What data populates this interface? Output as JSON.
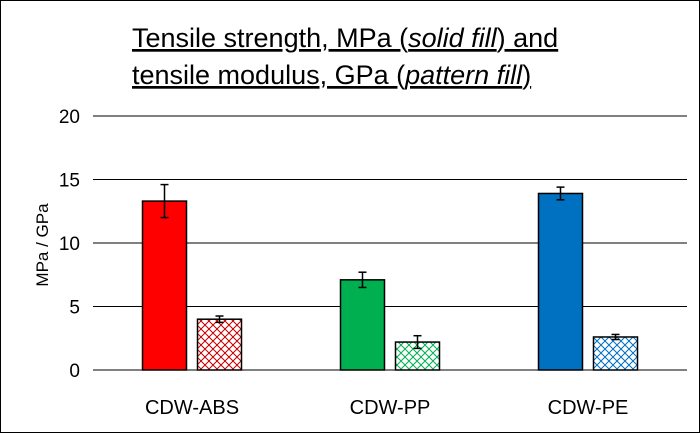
{
  "chart_data": {
    "type": "bar",
    "title": {
      "line1": {
        "a": "Tensile strength, MPa (",
        "b": "solid fill",
        "c": ") and"
      },
      "line2": {
        "a": "tensile modulus, GPa (",
        "b": "pattern fill",
        "c": ")"
      }
    },
    "ylabel": "MPa / GPa",
    "xlabel": "",
    "ylim": [
      0,
      20
    ],
    "yticks": [
      0,
      5,
      10,
      15,
      20
    ],
    "grid": true,
    "categories": [
      "CDW-ABS",
      "CDW-PP",
      "CDW-PE"
    ],
    "series": [
      {
        "fill": "solid",
        "values": [
          13.3,
          7.1,
          13.9
        ],
        "errors": [
          1.3,
          0.6,
          0.5
        ],
        "colors": [
          "#ff0000",
          "#00b050",
          "#0070c0"
        ]
      },
      {
        "fill": "pattern",
        "values": [
          4.0,
          2.2,
          2.6
        ],
        "errors": [
          0.25,
          0.5,
          0.2
        ],
        "colors": [
          "#c00000",
          "#00b050",
          "#0070c0"
        ]
      }
    ]
  }
}
